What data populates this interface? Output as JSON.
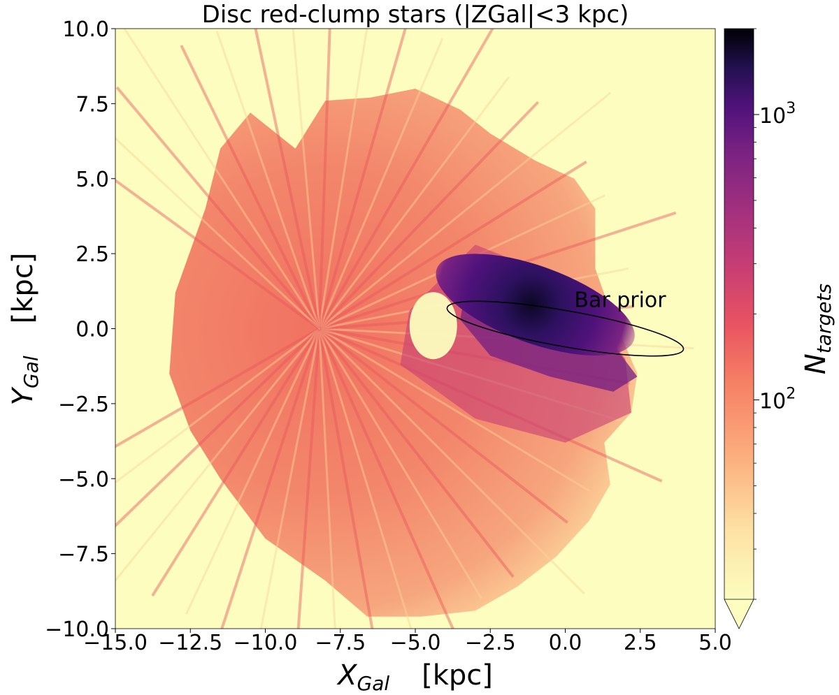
{
  "chart_data": {
    "type": "heatmap",
    "title": "Disc red-clump stars (|ZGal|<3 kpc)",
    "xlabel": {
      "symbol": "X",
      "subscript": "Gal",
      "unit": "[kpc]"
    },
    "ylabel": {
      "symbol": "Y",
      "subscript": "Gal",
      "unit": "[kpc]"
    },
    "xlim": [
      -15.0,
      5.0
    ],
    "ylim": [
      -10.0,
      10.0
    ],
    "xticks": [
      -15.0,
      -12.5,
      -10.0,
      -7.5,
      -5.0,
      -2.5,
      0.0,
      2.5,
      5.0
    ],
    "xtick_labels": [
      "−15.0",
      "−12.5",
      "−10.0",
      "−7.5",
      "−5.0",
      "−2.5",
      "0.0",
      "2.5",
      "5.0"
    ],
    "yticks": [
      -10.0,
      -7.5,
      -5.0,
      -2.5,
      0.0,
      2.5,
      5.0,
      7.5,
      10.0
    ],
    "ytick_labels": [
      "−10.0",
      "−7.5",
      "−5.0",
      "−2.5",
      "0.0",
      "2.5",
      "5.0",
      "7.5",
      "10.0"
    ],
    "colorbar": {
      "label": {
        "symbol": "N",
        "subscript": "targets"
      },
      "scale": "log",
      "colormap": "magma_r",
      "range": [
        20,
        2000
      ],
      "ticks": [
        100,
        1000
      ],
      "tick_labels": [
        {
          "base": "10",
          "exp": "2"
        },
        {
          "base": "10",
          "exp": "3"
        }
      ],
      "extend": "min"
    },
    "sun_position_kpc": [
      -8.2,
      0.0
    ],
    "density_peak_kpc": [
      -1.0,
      0.8
    ],
    "annotations": [
      {
        "text": "Bar prior",
        "shape": "ellipse",
        "center_kpc": [
          0.0,
          0.0
        ],
        "semi_major_kpc": 4.0,
        "semi_minor_kpc": 0.6,
        "angle_deg": -10,
        "color": "#000000"
      }
    ],
    "colors": {
      "background": "#fcfdbf",
      "low": "#fdbe85",
      "mid": "#f1605d",
      "high": "#721f81",
      "peak": "#000004"
    }
  }
}
